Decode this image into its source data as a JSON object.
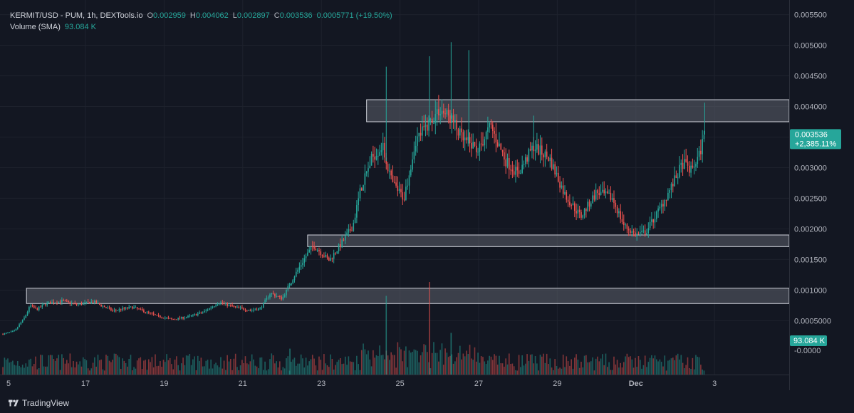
{
  "legend": {
    "symbol": "KERMIT/USD - PUM, 1h, DEXTools.io",
    "open_label": "O",
    "open": "0.002959",
    "high_label": "H",
    "high": "0.004062",
    "low_label": "L",
    "low": "0.002897",
    "close_label": "C",
    "close": "0.003536",
    "change": "0.0005771 (+19.50%)",
    "volume_label": "Volume (SMA)",
    "volume": "93.084 K"
  },
  "branding": {
    "name": "TradingView"
  },
  "colors": {
    "background": "#131722",
    "up": "#26a69a",
    "down": "#ef5350",
    "zone": "#5d606b"
  },
  "chart_data": {
    "type": "candlestick",
    "interval": "1h",
    "x_ticks": [
      "5",
      "17",
      "19",
      "21",
      "23",
      "25",
      "27",
      "29",
      "Dec",
      "3"
    ],
    "y_ticks": [
      "0.005500",
      "0.005000",
      "0.004500",
      "0.004000",
      "0.003500",
      "0.003000",
      "0.002500",
      "0.002000",
      "0.001500",
      "0.001000",
      "0.0005000"
    ],
    "ylim": [
      0.0,
      0.0058
    ],
    "last_price": "0.003536",
    "last_change": "+2,385.11%",
    "volume_badge": "93.084 K",
    "volume_zero_label": "-0.0000",
    "zones": [
      {
        "from_day": 15.5,
        "low": 0.00078,
        "high": 0.00103
      },
      {
        "from_day": 22.65,
        "low": 0.00171,
        "high": 0.0019
      },
      {
        "from_day": 24.15,
        "low": 0.00375,
        "high": 0.00411
      }
    ],
    "price_path": [
      [
        14.9,
        0.00028
      ],
      [
        15.2,
        0.00033
      ],
      [
        15.45,
        0.00055
      ],
      [
        15.6,
        0.00075
      ],
      [
        15.75,
        0.00068
      ],
      [
        16.0,
        0.00078
      ],
      [
        16.4,
        0.00082
      ],
      [
        16.8,
        0.00076
      ],
      [
        17.2,
        0.00081
      ],
      [
        17.7,
        0.00066
      ],
      [
        18.2,
        0.00072
      ],
      [
        18.8,
        0.00058
      ],
      [
        19.2,
        0.00052
      ],
      [
        19.6,
        0.00056
      ],
      [
        20.0,
        0.00064
      ],
      [
        20.4,
        0.0008
      ],
      [
        20.8,
        0.00072
      ],
      [
        21.2,
        0.00067
      ],
      [
        21.45,
        0.0007
      ],
      [
        21.7,
        0.00095
      ],
      [
        22.0,
        0.00086
      ],
      [
        22.3,
        0.00122
      ],
      [
        22.6,
        0.00155
      ],
      [
        22.8,
        0.00173
      ],
      [
        23.2,
        0.00148
      ],
      [
        23.55,
        0.0018
      ],
      [
        23.8,
        0.00205
      ],
      [
        24.0,
        0.00265
      ],
      [
        24.3,
        0.00318
      ],
      [
        24.55,
        0.00335
      ],
      [
        24.8,
        0.00275
      ],
      [
        25.1,
        0.0025
      ],
      [
        25.4,
        0.00345
      ],
      [
        25.7,
        0.0037
      ],
      [
        26.0,
        0.00395
      ],
      [
        26.3,
        0.0038
      ],
      [
        26.6,
        0.00345
      ],
      [
        27.0,
        0.0033
      ],
      [
        27.3,
        0.00368
      ],
      [
        27.7,
        0.0031
      ],
      [
        28.0,
        0.0029
      ],
      [
        28.4,
        0.00335
      ],
      [
        28.8,
        0.00315
      ],
      [
        29.2,
        0.00255
      ],
      [
        29.6,
        0.0022
      ],
      [
        30.0,
        0.0026
      ],
      [
        30.4,
        0.0025
      ],
      [
        30.7,
        0.00205
      ],
      [
        31.0,
        0.0019
      ],
      [
        31.25,
        0.00195
      ],
      [
        31.6,
        0.00232
      ],
      [
        31.9,
        0.00268
      ],
      [
        32.2,
        0.00308
      ],
      [
        32.4,
        0.00295
      ],
      [
        32.6,
        0.00318
      ],
      [
        32.75,
        0.00354
      ]
    ],
    "spikes": [
      [
        24.65,
        0.00465
      ],
      [
        25.75,
        0.00482
      ],
      [
        26.3,
        0.00505
      ],
      [
        26.75,
        0.00492
      ],
      [
        28.4,
        0.00385
      ],
      [
        32.75,
        0.004062
      ],
      [
        22.2,
        0.00108
      ]
    ],
    "volume_spikes": [
      [
        24.65,
        0.85
      ],
      [
        25.75,
        1.0
      ],
      [
        22.2,
        0.28
      ],
      [
        26.3,
        0.45
      ]
    ]
  }
}
